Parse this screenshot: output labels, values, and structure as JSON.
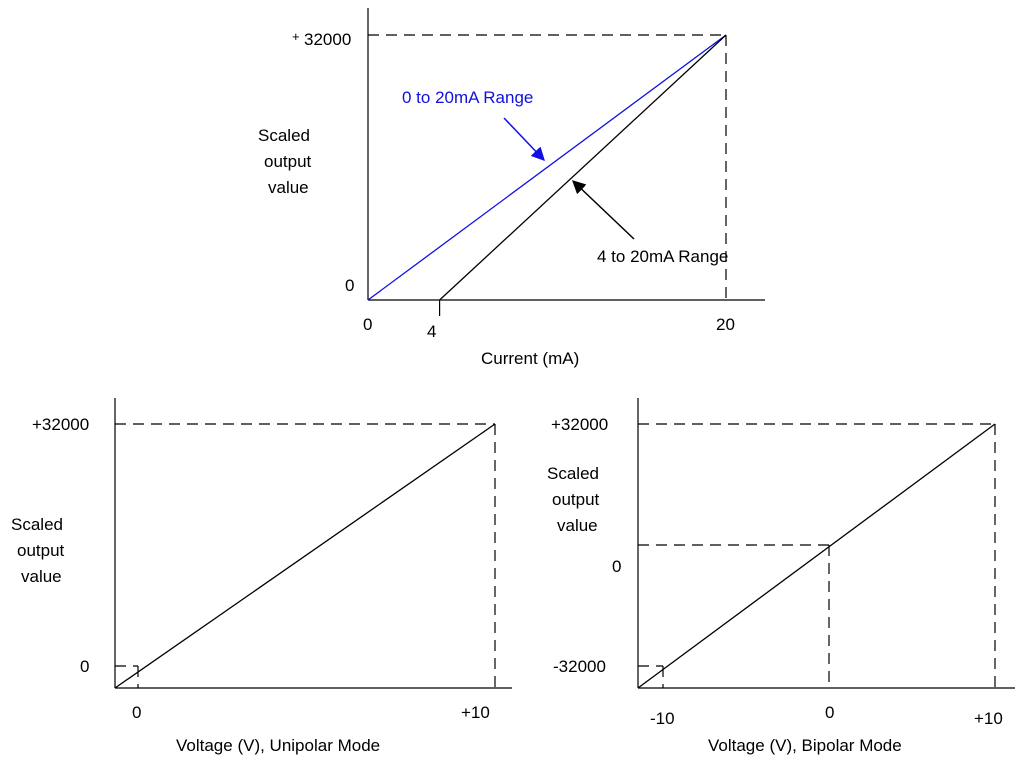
{
  "chart_data": [
    {
      "type": "line",
      "xlabel": "Current (mA)",
      "ylabel": [
        "Scaled",
        "output",
        "value"
      ],
      "xlim": [
        0,
        20
      ],
      "ylim": [
        0,
        32000
      ],
      "x_ticks": [
        "0",
        "4",
        "20"
      ],
      "y_ticks": [
        "0",
        "32000"
      ],
      "y_top_prefix": "+",
      "series": [
        {
          "name": "0 to 20mA Range",
          "x": [
            0,
            20
          ],
          "y": [
            0,
            32000
          ],
          "color": "#1010e0"
        },
        {
          "name": "4 to 20mA Range",
          "x": [
            4,
            20
          ],
          "y": [
            0,
            32000
          ],
          "color": "#000000"
        }
      ]
    },
    {
      "type": "line",
      "xlabel": "Voltage (V), Unipolar Mode",
      "ylabel": [
        "Scaled",
        "output",
        "value"
      ],
      "xlim": [
        0,
        10
      ],
      "ylim": [
        0,
        32000
      ],
      "x_ticks": [
        "0",
        "+10"
      ],
      "y_ticks": [
        "0",
        "+32000"
      ],
      "series": [
        {
          "x": [
            0,
            10
          ],
          "y": [
            0,
            32000
          ],
          "color": "#000000"
        }
      ]
    },
    {
      "type": "line",
      "xlabel": "Voltage (V), Bipolar Mode",
      "ylabel": [
        "Scaled",
        "output",
        "value"
      ],
      "xlim": [
        -10,
        10
      ],
      "ylim": [
        -32000,
        32000
      ],
      "x_ticks": [
        "-10",
        "0",
        "+10"
      ],
      "y_ticks": [
        "-32000",
        "0",
        "+32000"
      ],
      "series": [
        {
          "x": [
            -10,
            10
          ],
          "y": [
            -32000,
            32000
          ],
          "color": "#000000"
        }
      ]
    }
  ]
}
